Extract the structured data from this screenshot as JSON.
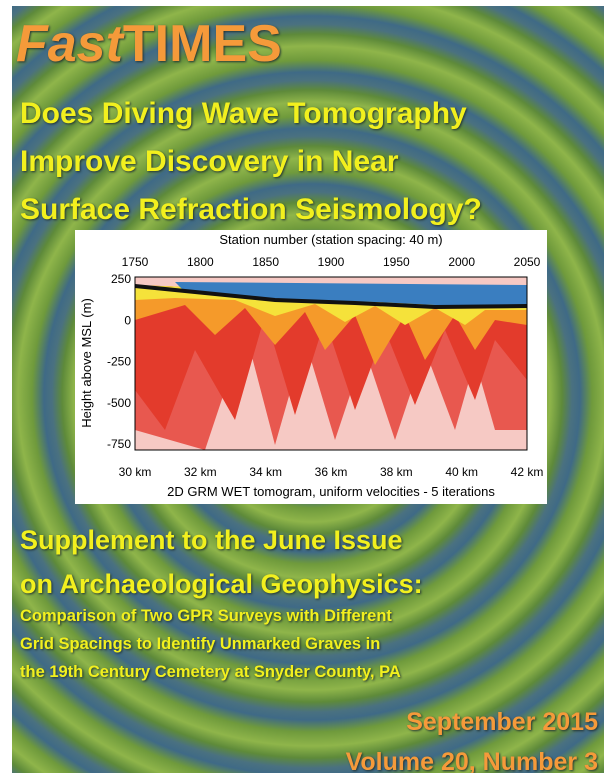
{
  "header": {
    "title_prefix": "Fast",
    "title_suffix": "TIMES"
  },
  "headline": [
    "Does Diving Wave Tomography",
    "Improve Discovery in Near",
    "Surface Refraction Seismology?"
  ],
  "figure": {
    "top_axis_title": "Station number (station spacing: 40 m)",
    "top_ticks": [
      "1750",
      "1800",
      "1850",
      "1900",
      "1950",
      "2000",
      "2050"
    ],
    "y_axis_title": "Height above MSL (m)",
    "y_ticks": [
      "250",
      "0",
      "-250",
      "-500",
      "-750"
    ],
    "bottom_ticks": [
      "30 km",
      "32 km",
      "34 km",
      "36 km",
      "38 km",
      "40 km",
      "42 km"
    ],
    "caption": "2D GRM WET tomogram, uniform velocities - 5 iterations"
  },
  "supplement": {
    "title": [
      "Supplement to the June Issue",
      "on Archaeological Geophysics:"
    ],
    "article": [
      "Comparison of Two GPR Surveys with Different",
      "Grid Spacings to Identify Unmarked Graves in",
      "the 19th Century Cemetery at Snyder County, PA"
    ]
  },
  "issue": {
    "date": "September 2015",
    "volume": "Volume 20, Number 3"
  }
}
